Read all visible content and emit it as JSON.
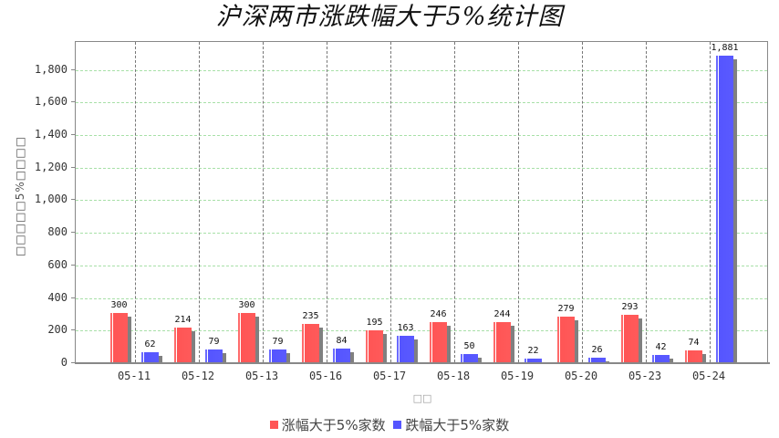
{
  "title": "沪深两市涨跌幅大于5%统计图",
  "y_axis_label": "□□□□□5%□□□□",
  "x_axis_label": "□□",
  "legend": [
    {
      "label": "涨幅大于5%家数",
      "color": "#ff5555"
    },
    {
      "label": "跌幅大于5%家数",
      "color": "#5555ff"
    }
  ],
  "chart_data": {
    "type": "bar",
    "title": "沪深两市涨跌幅大于5%统计图",
    "xlabel": "□□",
    "ylabel": "□□□□□5%□□□□",
    "categories": [
      "05-11",
      "05-12",
      "05-13",
      "05-16",
      "05-17",
      "05-18",
      "05-19",
      "05-20",
      "05-23",
      "05-24"
    ],
    "series": [
      {
        "name": "涨幅大于5%家数",
        "color": "#ff5555",
        "values": [
          300,
          214,
          300,
          235,
          195,
          246,
          244,
          279,
          293,
          74
        ]
      },
      {
        "name": "跌幅大于5%家数",
        "color": "#5555ff",
        "values": [
          62,
          79,
          79,
          84,
          163,
          50,
          22,
          26,
          42,
          1881
        ]
      }
    ],
    "value_labels": {
      "up": [
        "300",
        "214",
        "300",
        "235",
        "195",
        "246",
        "244",
        "279",
        "293",
        "74"
      ],
      "down": [
        "62",
        "79",
        "79",
        "84",
        "163",
        "50",
        "22",
        "26",
        "42",
        "1,881"
      ]
    },
    "yticks": [
      "0",
      "200",
      "400",
      "600",
      "800",
      "1,000",
      "1,200",
      "1,400",
      "1,600",
      "1,800"
    ],
    "ylim": [
      0,
      1960
    ],
    "grid": {
      "horizontal": true,
      "vertical": true
    },
    "legend_position": "bottom"
  }
}
